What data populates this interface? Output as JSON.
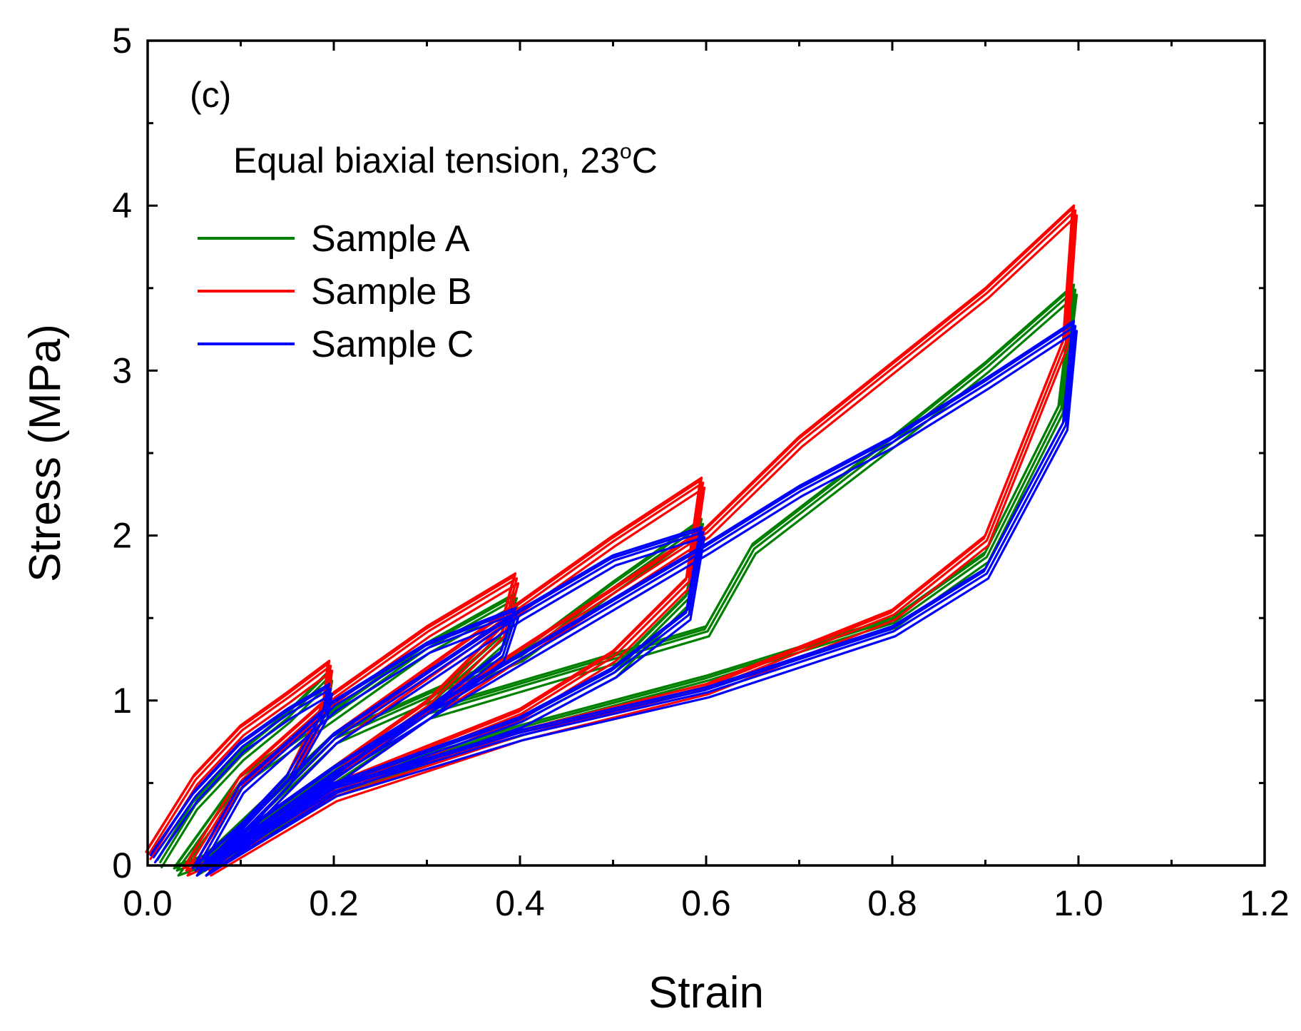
{
  "chart_data": {
    "type": "line",
    "annotation": "(c)",
    "condition_text": "Equal biaxial tension, 23",
    "condition_unit": "C",
    "xlabel": "Strain",
    "ylabel": "Stress (MPa)",
    "xlim": [
      0.0,
      1.2
    ],
    "ylim": [
      0,
      5
    ],
    "xticks": [
      0.0,
      0.2,
      0.4,
      0.6,
      0.8,
      1.0,
      1.2
    ],
    "xtick_labels": [
      "0.0",
      "0.2",
      "0.4",
      "0.6",
      "0.8",
      "1.0",
      "1.2"
    ],
    "yticks": [
      0,
      1,
      2,
      3,
      4,
      5
    ],
    "ytick_labels": [
      "0",
      "1",
      "2",
      "3",
      "4",
      "5"
    ],
    "legend_position": "top-left",
    "series": [
      {
        "name": "Sample A",
        "color": "#008000",
        "cycles": [
          {
            "max_strain": 0.2,
            "loading": [
              [
                0.012,
                0.05
              ],
              [
                0.05,
                0.4
              ],
              [
                0.1,
                0.7
              ],
              [
                0.15,
                0.93
              ],
              [
                0.195,
                1.18
              ]
            ],
            "unloading": [
              [
                0.195,
                1.18
              ],
              [
                0.19,
                1.0
              ],
              [
                0.15,
                0.55
              ],
              [
                0.1,
                0.25
              ],
              [
                0.06,
                0.06
              ],
              [
                0.03,
                0.0
              ]
            ]
          },
          {
            "max_strain": 0.4,
            "loading": [
              [
                0.03,
                0.0
              ],
              [
                0.1,
                0.55
              ],
              [
                0.2,
                0.95
              ],
              [
                0.3,
                1.35
              ],
              [
                0.395,
                1.65
              ]
            ],
            "unloading": [
              [
                0.395,
                1.65
              ],
              [
                0.38,
                1.4
              ],
              [
                0.3,
                1.0
              ],
              [
                0.2,
                0.6
              ],
              [
                0.1,
                0.2
              ],
              [
                0.05,
                0.0
              ]
            ]
          },
          {
            "max_strain": 0.6,
            "loading": [
              [
                0.05,
                0.0
              ],
              [
                0.2,
                0.8
              ],
              [
                0.4,
                1.3
              ],
              [
                0.5,
                1.72
              ],
              [
                0.595,
                2.1
              ]
            ],
            "unloading": [
              [
                0.595,
                2.1
              ],
              [
                0.58,
                1.65
              ],
              [
                0.5,
                1.2
              ],
              [
                0.4,
                0.9
              ],
              [
                0.2,
                0.5
              ],
              [
                0.05,
                0.0
              ]
            ]
          },
          {
            "max_strain": 1.0,
            "loading": [
              [
                0.05,
                0.0
              ],
              [
                0.3,
                0.95
              ],
              [
                0.6,
                1.45
              ],
              [
                0.65,
                1.95
              ],
              [
                0.8,
                2.6
              ],
              [
                0.9,
                3.05
              ],
              [
                0.995,
                3.52
              ]
            ],
            "unloading": [
              [
                0.995,
                3.52
              ],
              [
                0.98,
                2.8
              ],
              [
                0.9,
                1.9
              ],
              [
                0.8,
                1.5
              ],
              [
                0.6,
                1.15
              ],
              [
                0.4,
                0.85
              ],
              [
                0.2,
                0.5
              ],
              [
                0.06,
                0.0
              ]
            ]
          }
        ]
      },
      {
        "name": "Sample B",
        "color": "#ff0000",
        "cycles": [
          {
            "max_strain": 0.2,
            "loading": [
              [
                0.0,
                0.1
              ],
              [
                0.05,
                0.55
              ],
              [
                0.1,
                0.85
              ],
              [
                0.15,
                1.05
              ],
              [
                0.195,
                1.24
              ]
            ],
            "unloading": [
              [
                0.195,
                1.24
              ],
              [
                0.19,
                1.0
              ],
              [
                0.15,
                0.55
              ],
              [
                0.1,
                0.25
              ],
              [
                0.06,
                0.05
              ],
              [
                0.04,
                0.0
              ]
            ]
          },
          {
            "max_strain": 0.4,
            "loading": [
              [
                0.04,
                0.0
              ],
              [
                0.1,
                0.55
              ],
              [
                0.2,
                1.05
              ],
              [
                0.3,
                1.45
              ],
              [
                0.395,
                1.77
              ]
            ],
            "unloading": [
              [
                0.395,
                1.77
              ],
              [
                0.38,
                1.45
              ],
              [
                0.3,
                1.0
              ],
              [
                0.2,
                0.6
              ],
              [
                0.1,
                0.2
              ],
              [
                0.06,
                0.0
              ]
            ]
          },
          {
            "max_strain": 0.6,
            "loading": [
              [
                0.06,
                0.0
              ],
              [
                0.2,
                0.8
              ],
              [
                0.4,
                1.6
              ],
              [
                0.5,
                2.0
              ],
              [
                0.595,
                2.35
              ]
            ],
            "unloading": [
              [
                0.595,
                2.35
              ],
              [
                0.58,
                1.75
              ],
              [
                0.5,
                1.3
              ],
              [
                0.4,
                0.95
              ],
              [
                0.2,
                0.5
              ],
              [
                0.06,
                0.0
              ]
            ]
          },
          {
            "max_strain": 1.0,
            "loading": [
              [
                0.06,
                0.0
              ],
              [
                0.3,
                0.95
              ],
              [
                0.6,
                2.05
              ],
              [
                0.7,
                2.6
              ],
              [
                0.8,
                3.05
              ],
              [
                0.9,
                3.5
              ],
              [
                0.995,
                4.0
              ]
            ],
            "unloading": [
              [
                0.995,
                4.0
              ],
              [
                0.985,
                3.2
              ],
              [
                0.9,
                2.0
              ],
              [
                0.8,
                1.55
              ],
              [
                0.6,
                1.1
              ],
              [
                0.4,
                0.82
              ],
              [
                0.2,
                0.45
              ],
              [
                0.065,
                0.0
              ]
            ]
          }
        ]
      },
      {
        "name": "Sample C",
        "color": "#0000ff",
        "cycles": [
          {
            "max_strain": 0.2,
            "loading": [
              [
                0.005,
                0.08
              ],
              [
                0.05,
                0.45
              ],
              [
                0.1,
                0.75
              ],
              [
                0.15,
                0.95
              ],
              [
                0.195,
                1.1
              ]
            ],
            "unloading": [
              [
                0.195,
                1.1
              ],
              [
                0.19,
                0.95
              ],
              [
                0.15,
                0.55
              ],
              [
                0.1,
                0.25
              ],
              [
                0.06,
                0.05
              ],
              [
                0.05,
                0.0
              ]
            ]
          },
          {
            "max_strain": 0.4,
            "loading": [
              [
                0.05,
                0.0
              ],
              [
                0.1,
                0.5
              ],
              [
                0.2,
                1.0
              ],
              [
                0.3,
                1.35
              ],
              [
                0.395,
                1.56
              ]
            ],
            "unloading": [
              [
                0.395,
                1.56
              ],
              [
                0.38,
                1.3
              ],
              [
                0.3,
                0.95
              ],
              [
                0.2,
                0.6
              ],
              [
                0.1,
                0.2
              ],
              [
                0.06,
                0.0
              ]
            ]
          },
          {
            "max_strain": 0.6,
            "loading": [
              [
                0.06,
                0.0
              ],
              [
                0.2,
                0.8
              ],
              [
                0.4,
                1.55
              ],
              [
                0.5,
                1.88
              ],
              [
                0.595,
                2.05
              ]
            ],
            "unloading": [
              [
                0.595,
                2.05
              ],
              [
                0.58,
                1.55
              ],
              [
                0.5,
                1.2
              ],
              [
                0.4,
                0.9
              ],
              [
                0.2,
                0.5
              ],
              [
                0.06,
                0.0
              ]
            ]
          },
          {
            "max_strain": 1.0,
            "loading": [
              [
                0.06,
                0.0
              ],
              [
                0.3,
                0.95
              ],
              [
                0.6,
                1.95
              ],
              [
                0.7,
                2.3
              ],
              [
                0.8,
                2.6
              ],
              [
                0.9,
                2.95
              ],
              [
                0.995,
                3.3
              ]
            ],
            "unloading": [
              [
                0.995,
                3.3
              ],
              [
                0.985,
                2.7
              ],
              [
                0.9,
                1.8
              ],
              [
                0.8,
                1.45
              ],
              [
                0.6,
                1.08
              ],
              [
                0.4,
                0.82
              ],
              [
                0.2,
                0.48
              ],
              [
                0.06,
                0.0
              ]
            ]
          }
        ]
      }
    ]
  }
}
